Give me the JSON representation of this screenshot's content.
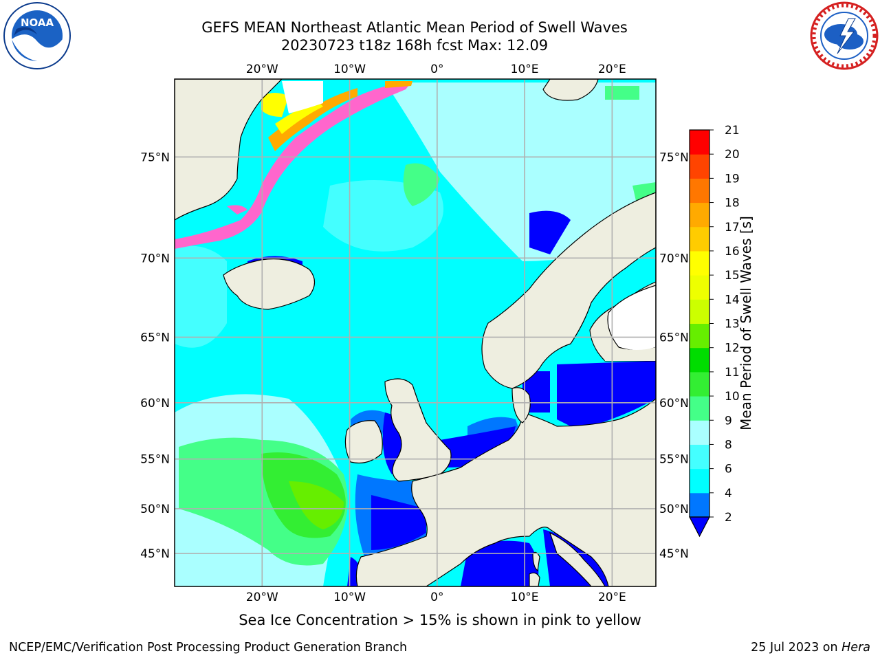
{
  "title": {
    "line1": "GEFS MEAN Northeast Atlantic Mean Period of Swell Waves",
    "line2": "20230723 t18z 168h fcst   Max: 12.09"
  },
  "map": {
    "extent": {
      "lon_min": -30,
      "lon_max": 25,
      "lat_min": 41,
      "lat_max": 78
    },
    "projection": "mercator",
    "lon_ticks": [
      {
        "lon": -20,
        "label": "20°W"
      },
      {
        "lon": -10,
        "label": "10°W"
      },
      {
        "lon": 0,
        "label": "0°"
      },
      {
        "lon": 10,
        "label": "10°E"
      },
      {
        "lon": 20,
        "label": "20°E"
      }
    ],
    "lat_ticks": [
      {
        "lat": 75,
        "label": "75°N"
      },
      {
        "lat": 70,
        "label": "70°N"
      },
      {
        "lat": 65,
        "label": "65°N"
      },
      {
        "lat": 60,
        "label": "60°N"
      },
      {
        "lat": 55,
        "label": "55°N"
      },
      {
        "lat": 50,
        "label": "50°N"
      },
      {
        "lat": 45,
        "label": "45°N"
      }
    ],
    "grid": true,
    "land_color": "#eeeee0",
    "ocean_base_color": "#00ffff"
  },
  "colorbar": {
    "title": "Mean Period of Swell Waves [s]",
    "ticks": [
      "2",
      "4",
      "6",
      "8",
      "9",
      "10",
      "11",
      "12",
      "13",
      "14",
      "15",
      "16",
      "17",
      "18",
      "19",
      "20",
      "21"
    ],
    "colors": [
      "#0000ff",
      "#0077ff",
      "#00ffff",
      "#44ffff",
      "#aaffff",
      "#44ff88",
      "#33ee33",
      "#00dd00",
      "#66ee00",
      "#ccff00",
      "#eeff00",
      "#ffff00",
      "#ffcc00",
      "#ffaa00",
      "#ff7700",
      "#ff4400",
      "#ff0000",
      "#ff0000"
    ],
    "extend": "min"
  },
  "caption": "Sea Ice Concentration > 15% is shown in pink to yellow",
  "footer": {
    "left": "NCEP/EMC/Verification Post Processing Product Generation Branch",
    "right_prefix": "25 Jul 2023 on ",
    "right_machine": "Hera"
  },
  "logos": {
    "left_icon": "noaa-logo",
    "left_text": "NOAA",
    "right_icon": "nws-logo"
  }
}
